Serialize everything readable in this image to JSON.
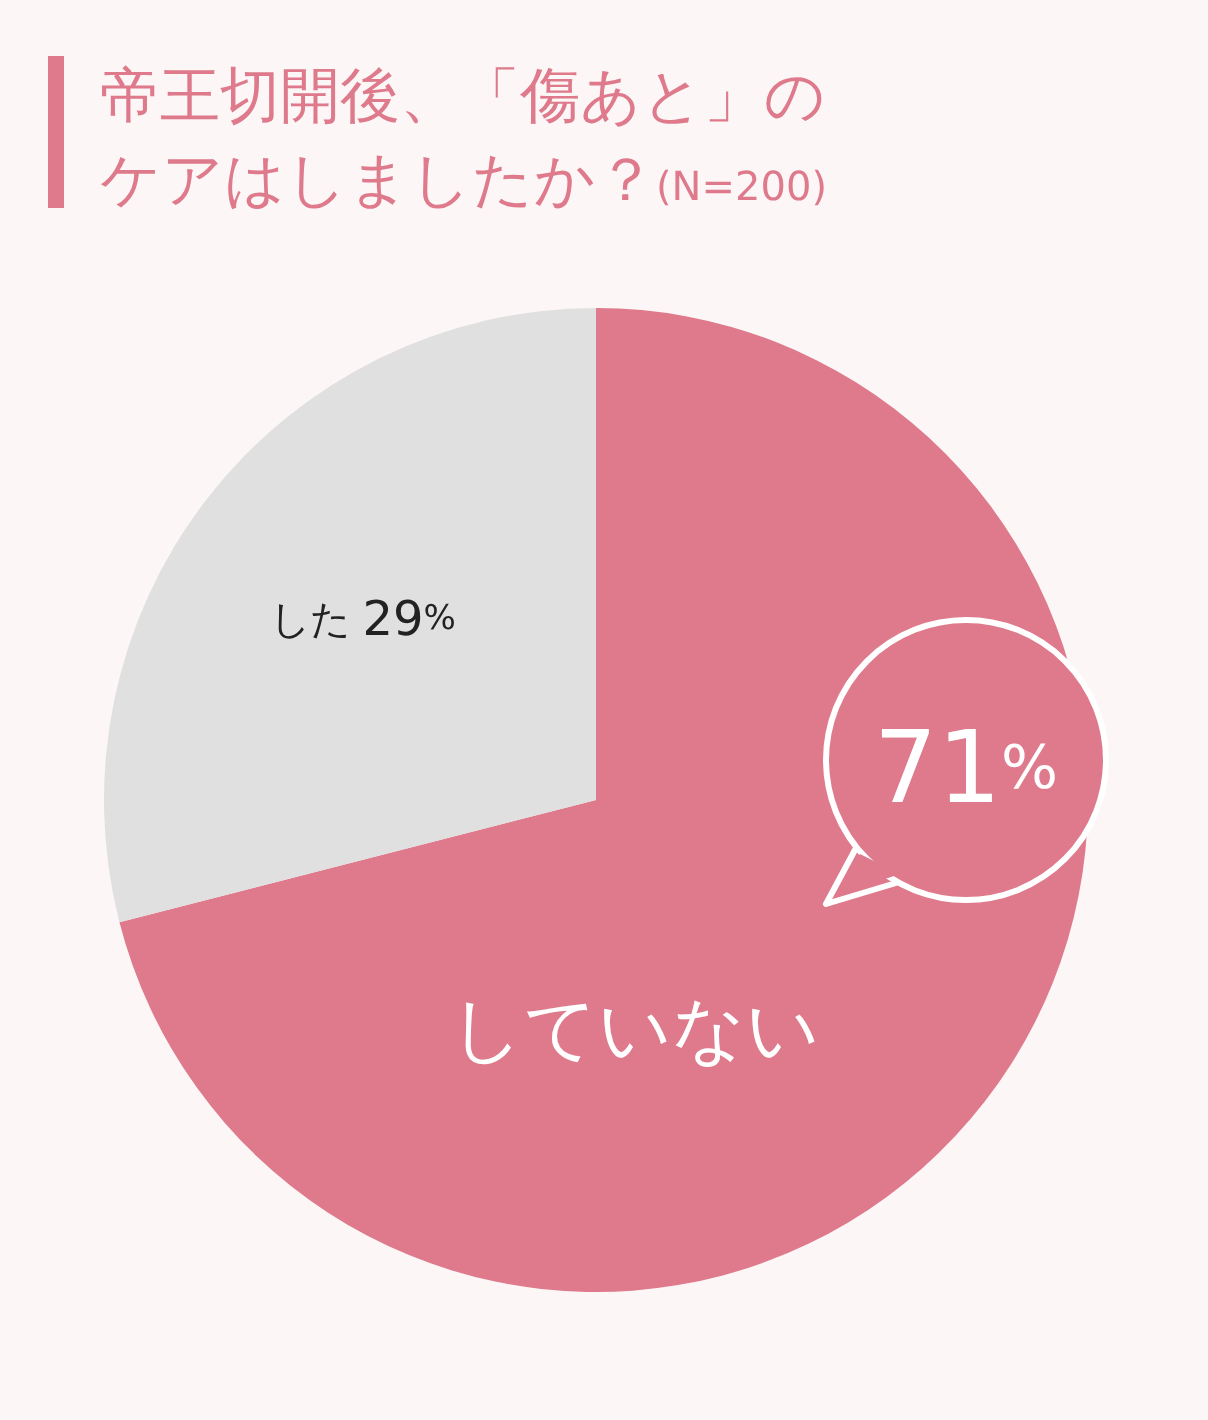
{
  "chart_data": {
    "type": "pie",
    "title": "帝王切開後、「傷あと」のケアはしましたか？",
    "subtitle": "(N=200)",
    "categories": [
      "していない",
      "した"
    ],
    "values": [
      71,
      29
    ],
    "colors": [
      "#de7a8b",
      "#e0e0e0"
    ],
    "value_labels": [
      "71%",
      "29%"
    ]
  }
}
